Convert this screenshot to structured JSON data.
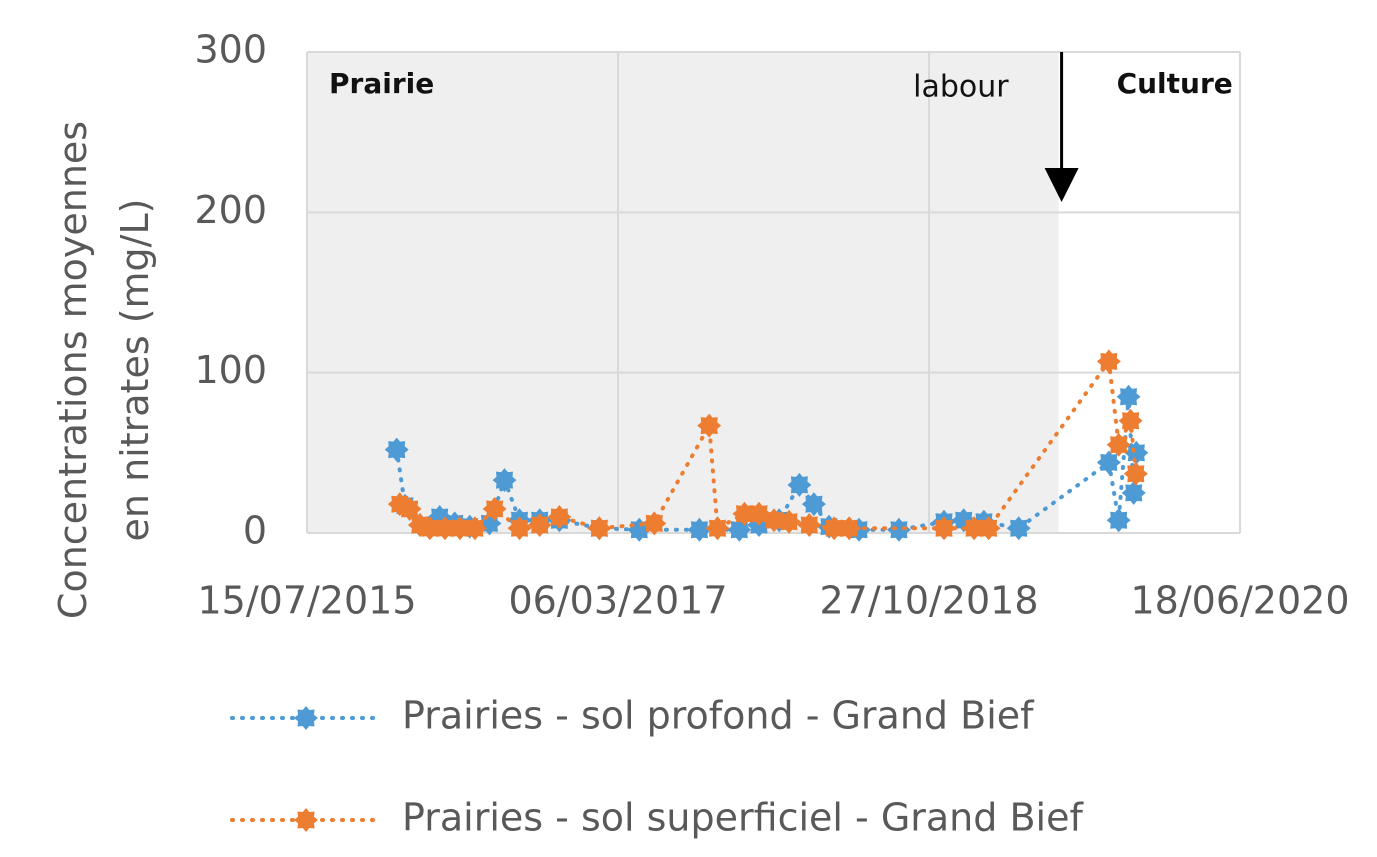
{
  "chart_data": {
    "type": "line",
    "y_label": [
      "Concentrations moyennes",
      "en nitrates (mg/L)"
    ],
    "xlim": [
      "2015-07-15",
      "2020-06-18"
    ],
    "xticks": [
      {
        "value": "2015-07-15",
        "label": "15/07/2015"
      },
      {
        "value": "2017-03-06",
        "label": "06/03/2017"
      },
      {
        "value": "2018-10-27",
        "label": "27/10/2018"
      },
      {
        "value": "2020-06-18",
        "label": "18/06/2020"
      }
    ],
    "ylim": [
      0,
      300
    ],
    "yticks": [
      0,
      100,
      200,
      300
    ],
    "grid": true,
    "legend": "bottom",
    "annotations": [
      {
        "text": "Prairie"
      },
      {
        "text": "labour",
        "x": "2019-07-04"
      },
      {
        "text": "Culture"
      }
    ],
    "series": [
      {
        "name": "Prairies - sol profond - Grand Bief",
        "color": "#4e9ad4",
        "x": [
          "2016-01-04",
          "2016-01-20",
          "2016-02-18",
          "2016-03-27",
          "2016-04-25",
          "2016-05-24",
          "2016-07-01",
          "2016-07-30",
          "2016-08-28",
          "2016-10-06",
          "2016-11-13",
          "2017-01-29",
          "2017-04-16",
          "2017-08-10",
          "2017-10-26",
          "2017-12-03",
          "2018-01-11",
          "2018-02-19",
          "2018-03-19",
          "2018-04-17",
          "2018-06-14",
          "2018-08-30",
          "2018-11-25",
          "2019-01-02",
          "2019-02-10",
          "2019-04-18",
          "2019-10-09",
          "2019-10-28",
          "2019-11-16",
          "2019-11-26",
          "2019-12-01"
        ],
        "values": [
          52,
          17,
          5,
          10,
          6,
          4,
          6,
          33,
          8,
          8,
          8,
          3,
          2,
          2,
          2,
          5,
          8,
          30,
          18,
          4,
          2,
          2,
          7,
          8,
          7,
          3,
          44,
          8,
          85,
          25,
          50
        ]
      },
      {
        "name": "Prairies - sol superficiel - Grand Bief",
        "color": "#ed7d31",
        "x": [
          "2016-01-10",
          "2016-01-29",
          "2016-02-18",
          "2016-03-08",
          "2016-04-06",
          "2016-05-05",
          "2016-06-03",
          "2016-07-11",
          "2016-08-28",
          "2016-10-06",
          "2016-11-13",
          "2017-01-29",
          "2017-05-15",
          "2017-08-29",
          "2017-09-14",
          "2017-11-05",
          "2017-12-03",
          "2018-01-01",
          "2018-01-30",
          "2018-03-10",
          "2018-04-27",
          "2018-05-26",
          "2018-11-25",
          "2019-01-22",
          "2019-02-19",
          "2019-10-09",
          "2019-10-28",
          "2019-11-20",
          "2019-11-30"
        ],
        "values": [
          18,
          15,
          5,
          3,
          3,
          3,
          3,
          15,
          3,
          5,
          10,
          3,
          6,
          67,
          3,
          12,
          12,
          8,
          7,
          5,
          3,
          3,
          3,
          3,
          3,
          107,
          55,
          70,
          37
        ]
      }
    ]
  }
}
